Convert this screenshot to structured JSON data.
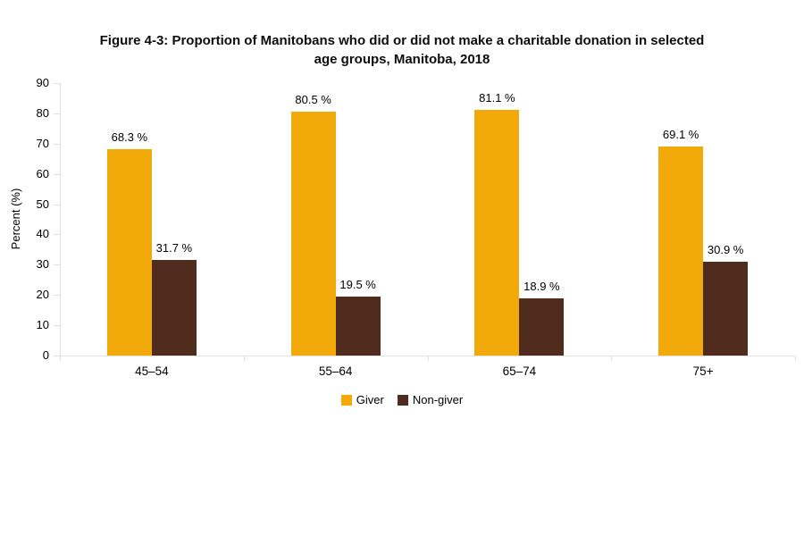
{
  "header": {
    "title_line1": "Figure 4-3: Proportion of Manitobans who did or did not make a charitable donation in selected",
    "title_line2": "age groups, Manitoba, 2018"
  },
  "colors": {
    "giver": "#F2A90A",
    "non_giver": "#4F2C1D",
    "axis_line": "#E0E0E0",
    "text": "#000000",
    "background": "#FFFFFF"
  },
  "chart_data": {
    "type": "bar",
    "title": "Figure 4-3: Proportion of Manitobans who did or did not make a charitable donation in selected age groups, Manitoba, 2018",
    "categories": [
      "45–54",
      "55–64",
      "65–74",
      "75+"
    ],
    "series": [
      {
        "name": "Giver",
        "color": "#F2A90A",
        "values": [
          68.3,
          80.5,
          81.1,
          69.1
        ],
        "labels": [
          "68.3 %",
          "80.5 %",
          "81.1 %",
          "69.1 %"
        ]
      },
      {
        "name": "Non-giver",
        "color": "#4F2C1D",
        "values": [
          31.7,
          19.5,
          18.9,
          30.9
        ],
        "labels": [
          "31.7 %",
          "19.5 %",
          "18.9 %",
          "30.9 %"
        ]
      }
    ],
    "xlabel": "",
    "ylabel": "Percent (%)",
    "ylim": [
      0,
      90
    ],
    "yticks": [
      0,
      10,
      20,
      30,
      40,
      50,
      60,
      70,
      80,
      90
    ],
    "grid": false,
    "legend_position": "bottom",
    "value_label_suffix": " %"
  }
}
